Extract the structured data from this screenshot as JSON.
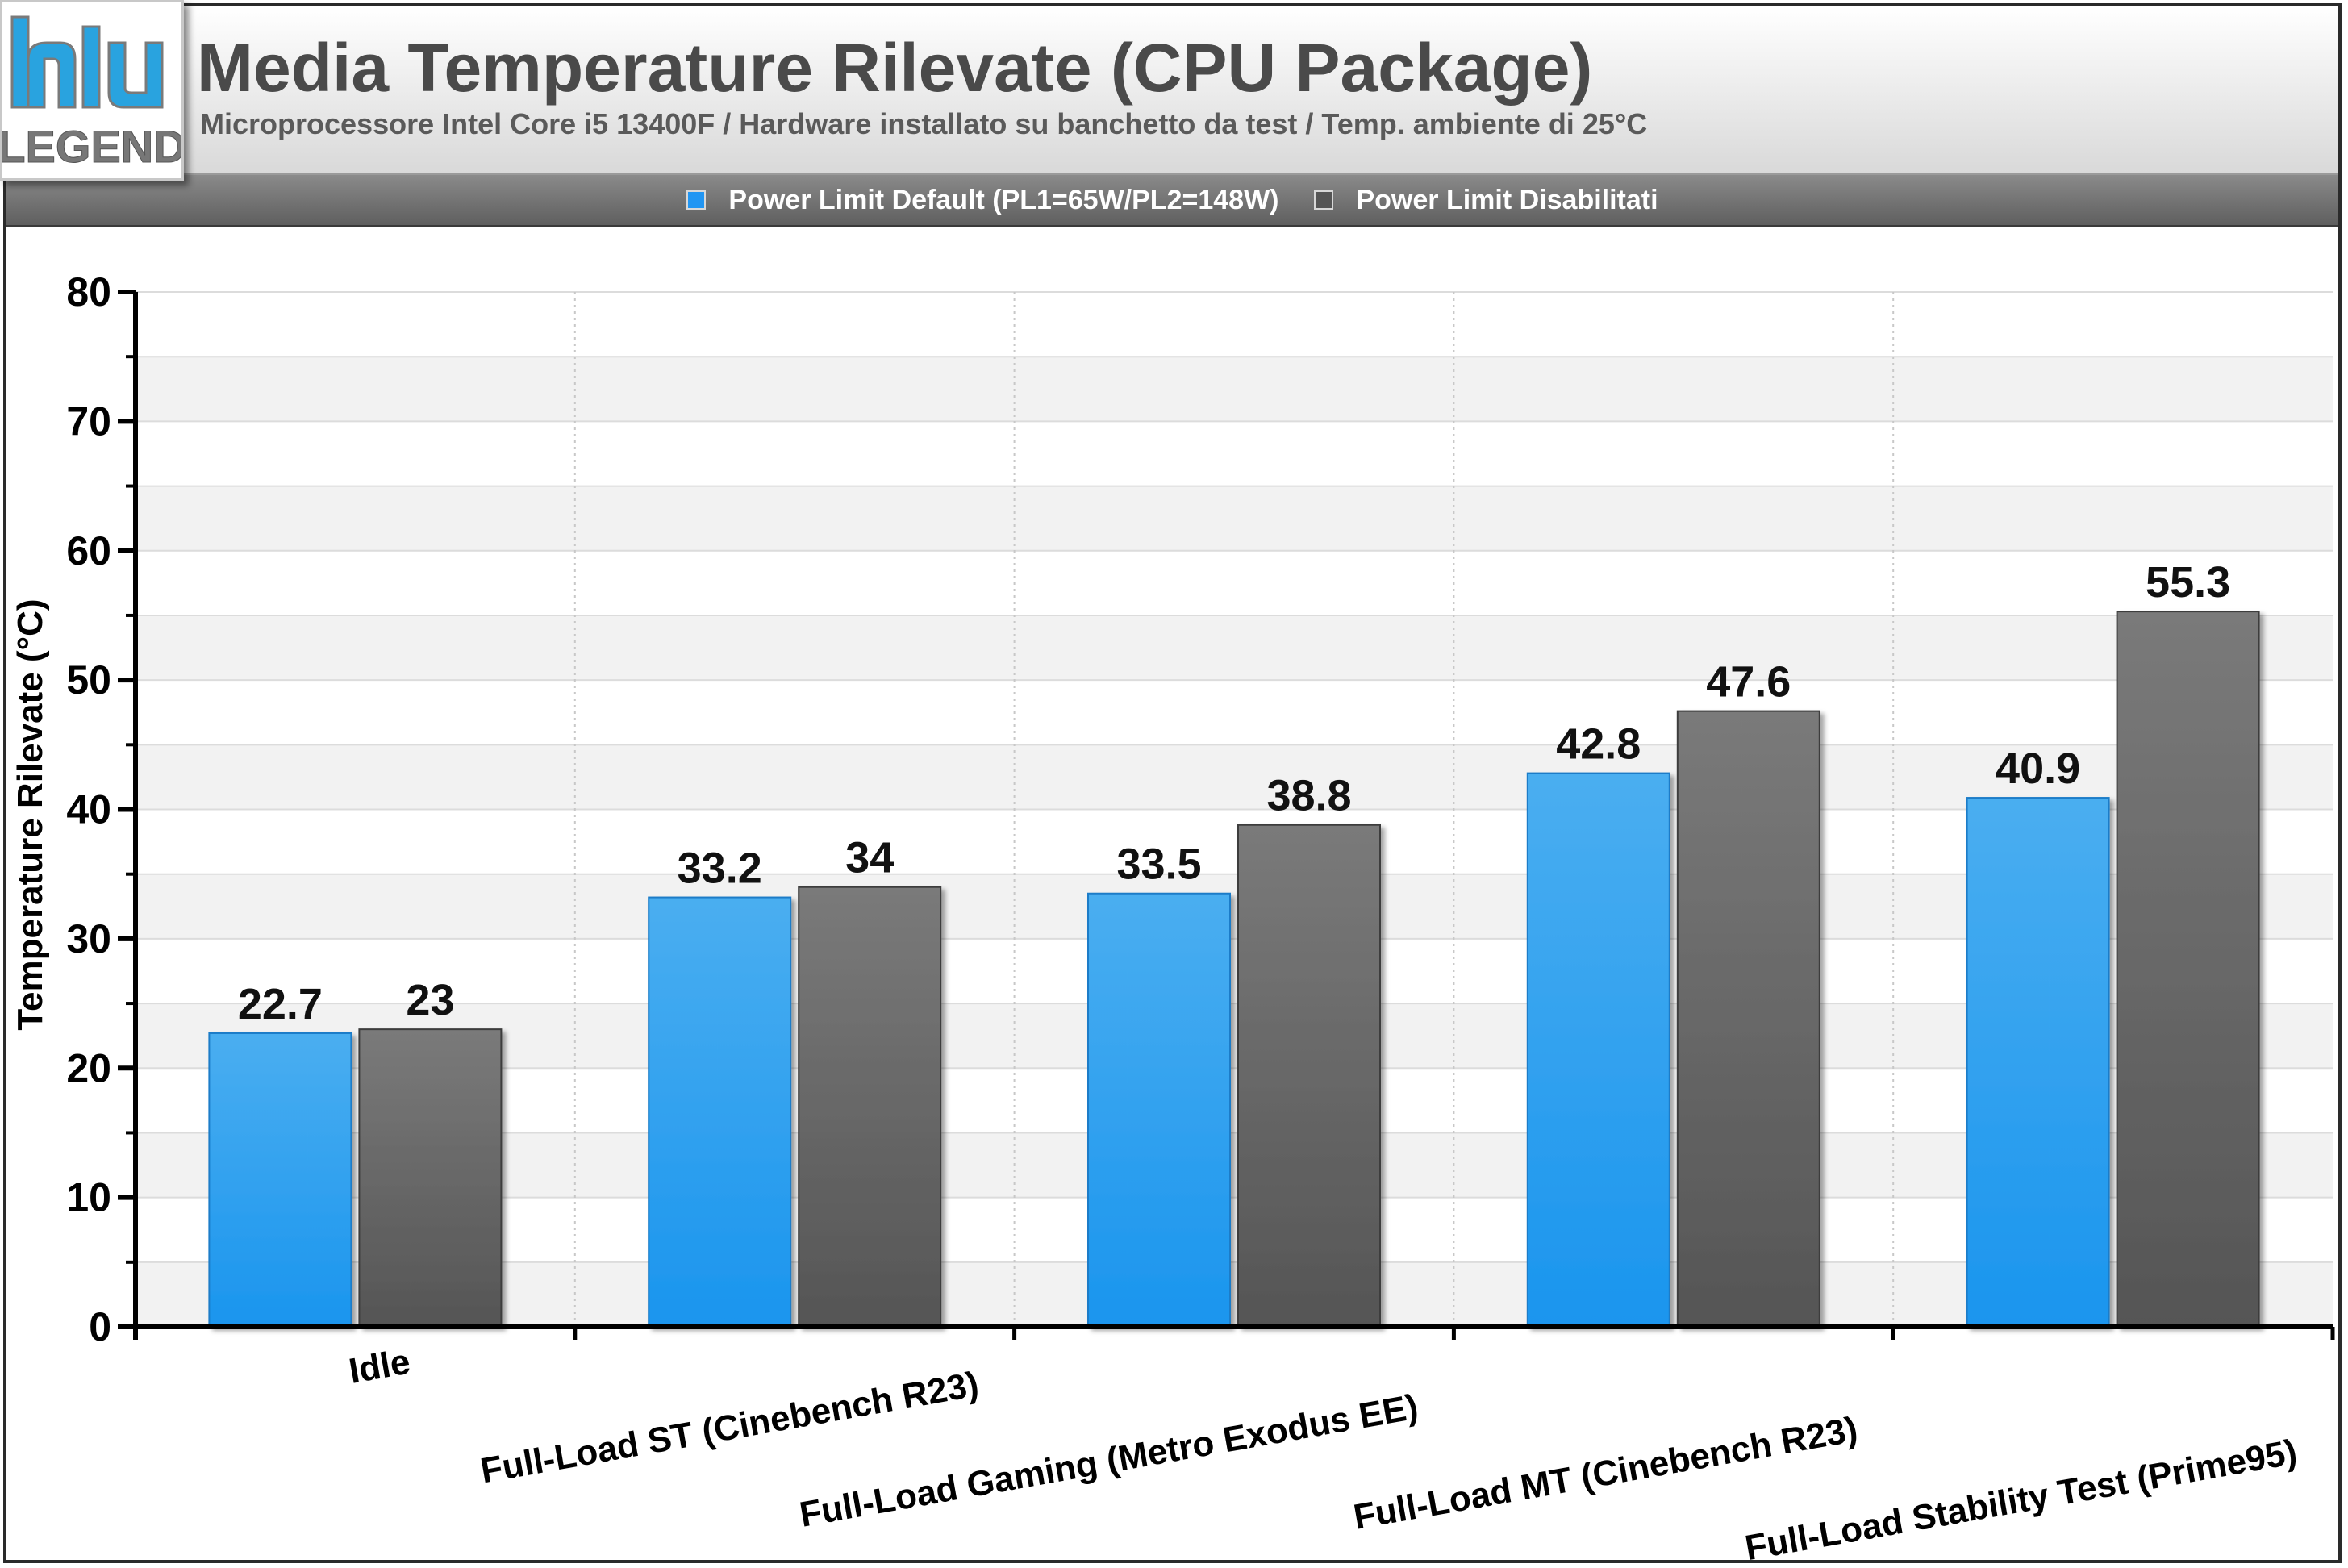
{
  "header": {
    "logo_text": "LEGEND",
    "title": "Media Temperature Rilevate (CPU Package)",
    "subtitle": "Microprocessore Intel Core i5 13400F / Hardware installato su banchetto da test / Temp. ambiente di 25°C"
  },
  "legend": [
    {
      "label": "Power Limit Default (PL1=65W/PL2=148W)",
      "color": "#2196f3"
    },
    {
      "label": "Power Limit Disabilitati",
      "color": "#555555"
    }
  ],
  "chart_data": {
    "type": "bar",
    "title": "Media Temperature Rilevate (CPU Package)",
    "subtitle": "Microprocessore Intel Core i5 13400F / Hardware installato su banchetto da test / Temp. ambiente di 25°C",
    "xlabel": "",
    "ylabel": "Temperature Rilevate (°C)",
    "ylim": [
      0,
      80
    ],
    "yticks": [
      0,
      10,
      20,
      30,
      40,
      50,
      60,
      70,
      80
    ],
    "grid": true,
    "legend_position": "top",
    "categories": [
      "Idle",
      "Full-Load ST (Cinebench R23)",
      "Full-Load Gaming (Metro Exodus EE)",
      "Full-Load MT (Cinebench R23)",
      "Full-Load Stability Test (Prime95)"
    ],
    "series": [
      {
        "name": "Power Limit Default (PL1=65W/PL2=148W)",
        "color": "#2196f3",
        "values": [
          22.7,
          33.2,
          33.5,
          42.8,
          40.9
        ]
      },
      {
        "name": "Power Limit Disabilitati",
        "color": "#555555",
        "values": [
          23,
          34,
          38.8,
          47.6,
          55.3
        ]
      }
    ]
  }
}
